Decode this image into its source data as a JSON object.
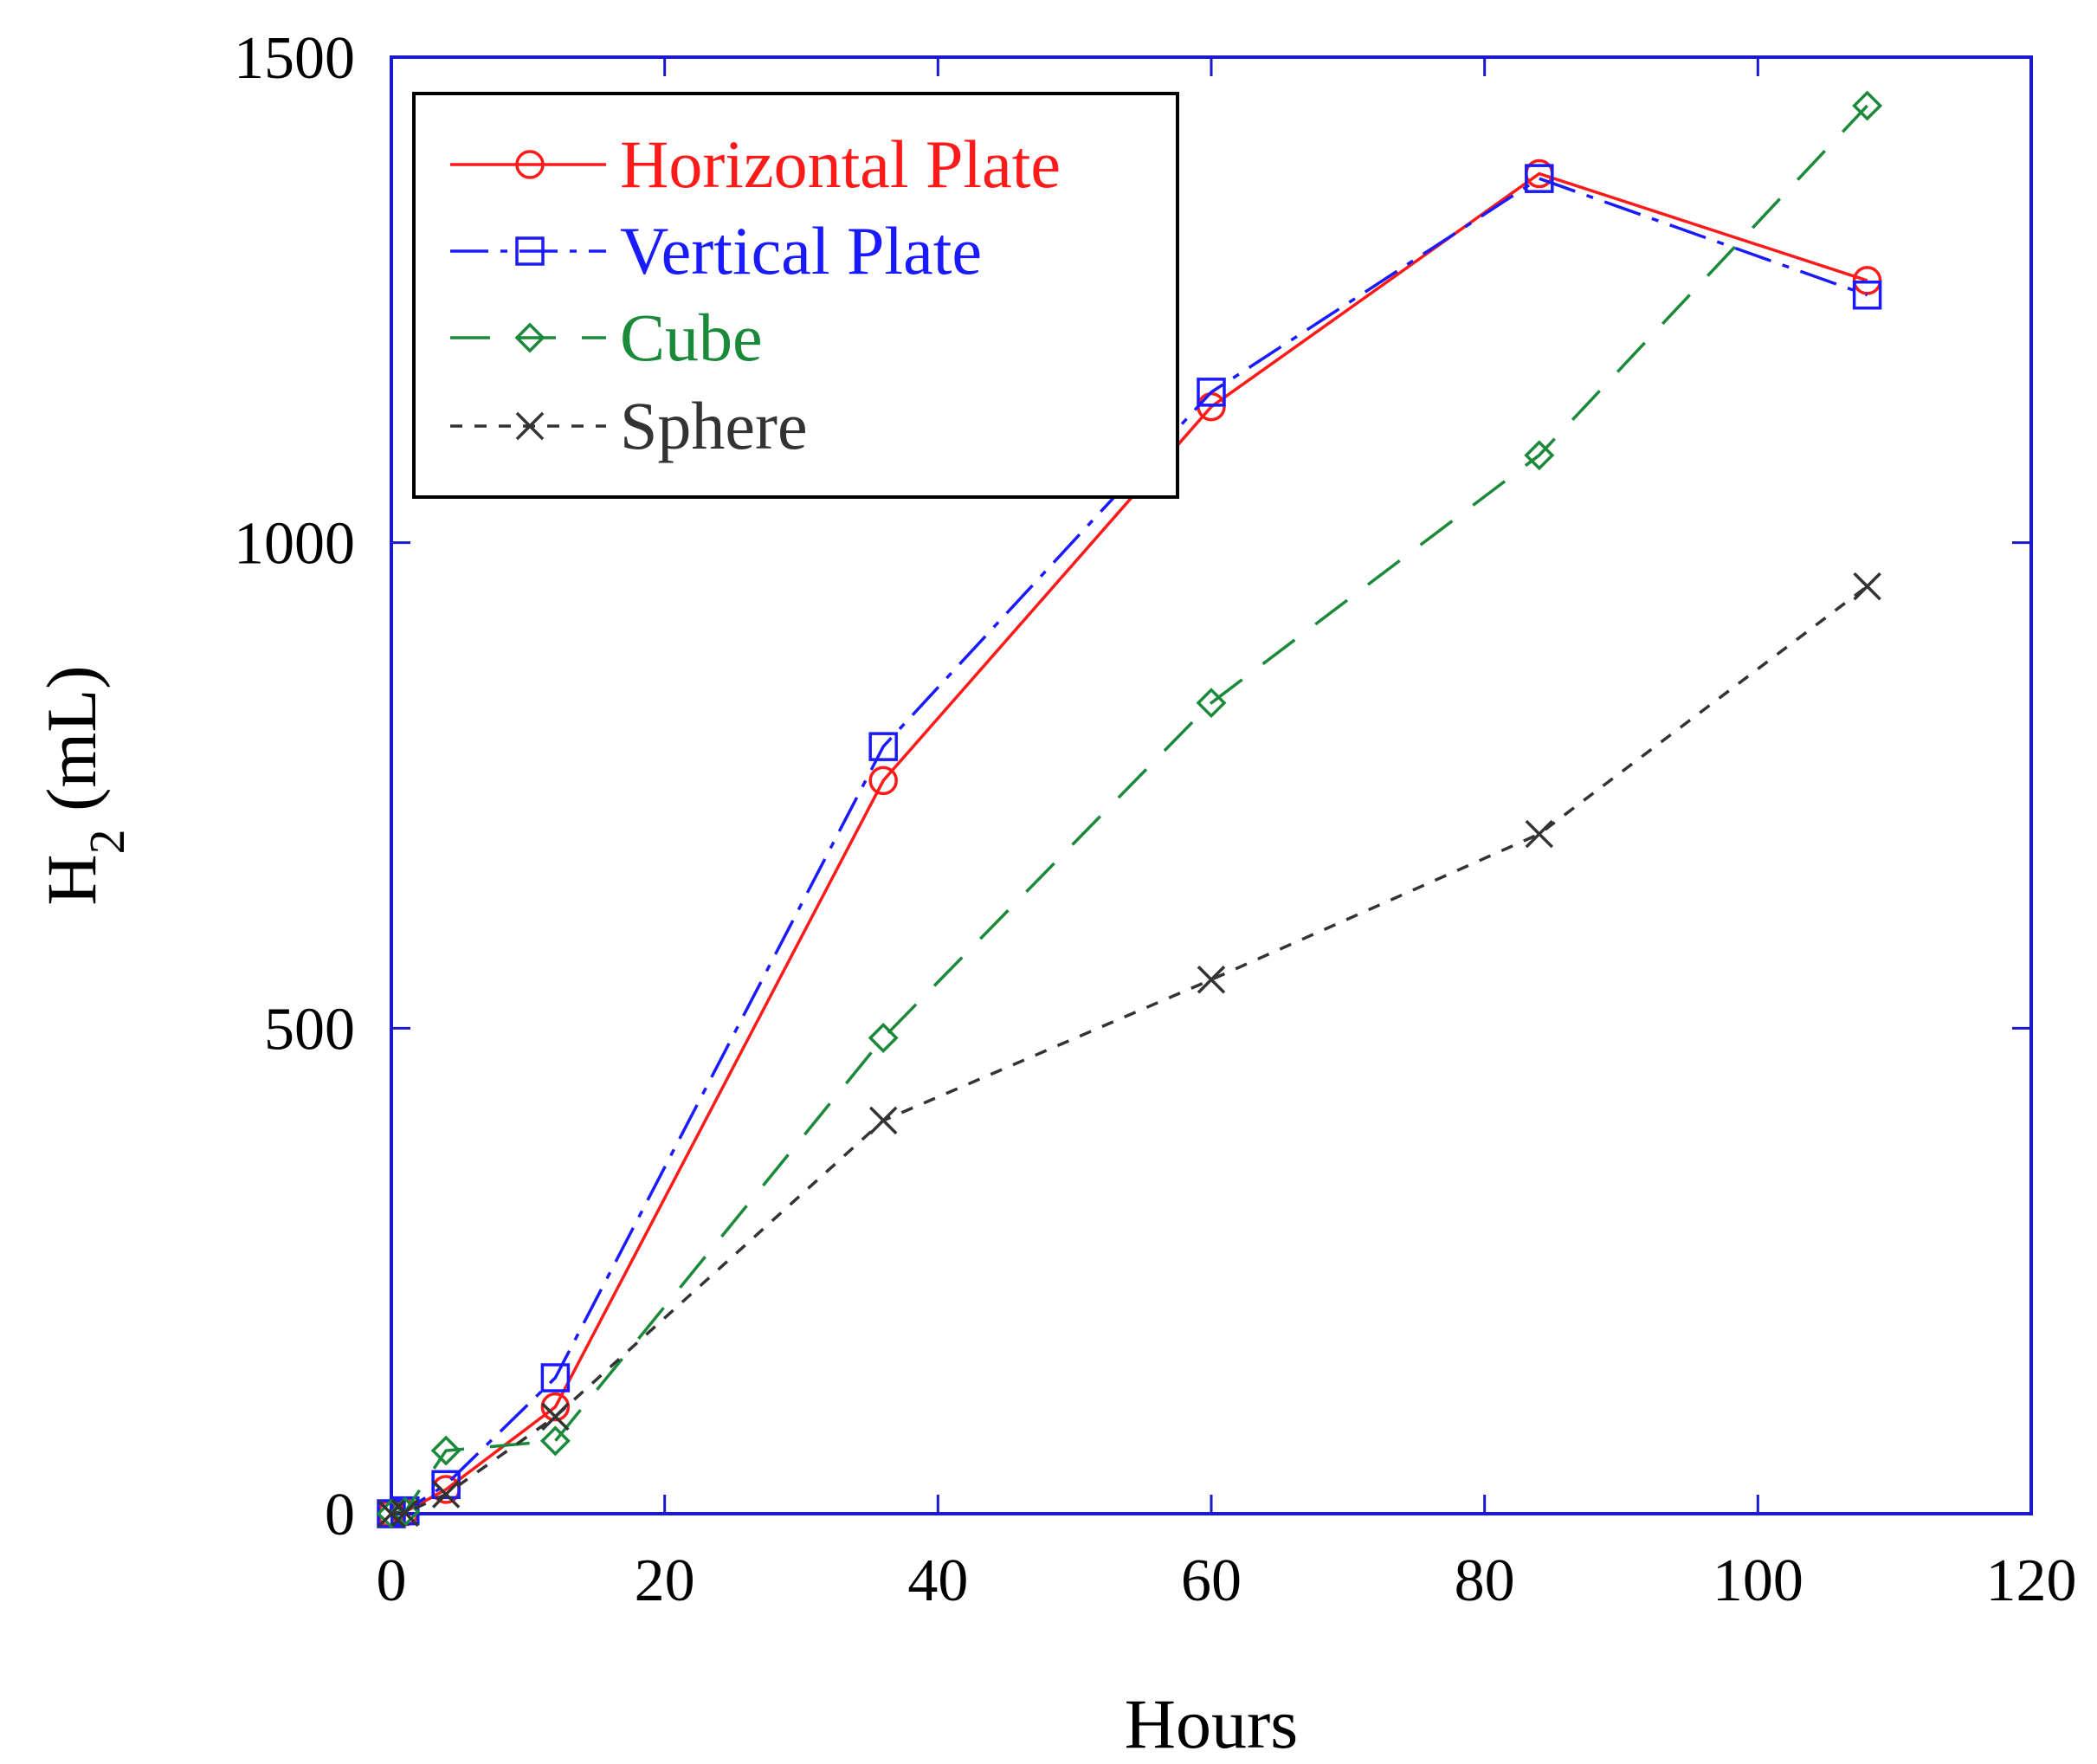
{
  "chart_data": {
    "type": "line",
    "title": "",
    "xlabel": "Hours",
    "ylabel_main": "H",
    "ylabel_sub": "2",
    "ylabel_unit": " (mL)",
    "xlim": [
      0,
      120
    ],
    "ylim": [
      0,
      1500
    ],
    "xticks": [
      0,
      20,
      40,
      60,
      80,
      100,
      120
    ],
    "yticks": [
      0,
      500,
      1000,
      1500
    ],
    "grid": false,
    "legend_position": "top-left",
    "axis_color": "#1a1acc",
    "series": [
      {
        "name": "Horizontal Plate",
        "color": "#ff1a1a",
        "dash": "solid",
        "marker": "circle",
        "x": [
          0,
          1,
          4,
          12,
          36,
          60,
          84,
          108
        ],
        "y": [
          0,
          2,
          25,
          110,
          755,
          1140,
          1380,
          1270
        ]
      },
      {
        "name": "Vertical Plate",
        "color": "#1a1aff",
        "dash": "dashdot",
        "marker": "square",
        "x": [
          0,
          1,
          4,
          12,
          36,
          60,
          84,
          108
        ],
        "y": [
          0,
          3,
          30,
          140,
          790,
          1155,
          1375,
          1255
        ]
      },
      {
        "name": "Cube",
        "color": "#1a8a3a",
        "dash": "longdash",
        "marker": "diamond",
        "x": [
          0,
          1,
          4,
          12,
          36,
          60,
          84,
          108
        ],
        "y": [
          0,
          2,
          65,
          75,
          490,
          835,
          1090,
          1450
        ]
      },
      {
        "name": "Sphere",
        "color": "#333333",
        "dash": "shortdash",
        "marker": "x",
        "x": [
          0,
          1,
          4,
          12,
          36,
          60,
          84,
          108
        ],
        "y": [
          0,
          1,
          20,
          100,
          405,
          550,
          700,
          955
        ]
      }
    ]
  }
}
